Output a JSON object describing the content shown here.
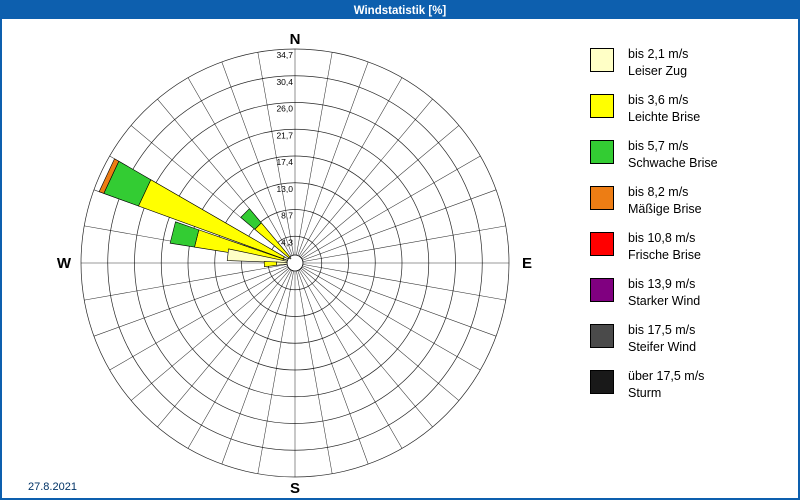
{
  "window": {
    "title": "Windstatistik [%]"
  },
  "footer": {
    "date": "27.8.2021"
  },
  "compass": {
    "n": "N",
    "e": "E",
    "s": "S",
    "w": "W"
  },
  "legend": {
    "items": [
      {
        "speed": "bis 2,1 m/s",
        "label": "Leiser Zug",
        "color": "#ffffc6"
      },
      {
        "speed": "bis 3,6 m/s",
        "label": "Leichte Brise",
        "color": "#ffff00"
      },
      {
        "speed": "bis 5,7 m/s",
        "label": "Schwache Brise",
        "color": "#33cc33"
      },
      {
        "speed": "bis 8,2 m/s",
        "label": "Mäßige Brise",
        "color": "#ed7d14"
      },
      {
        "speed": "bis 10,8 m/s",
        "label": "Frische Brise",
        "color": "#ff0000"
      },
      {
        "speed": "bis 13,9 m/s",
        "label": "Starker Wind",
        "color": "#800080"
      },
      {
        "speed": "bis 17,5 m/s",
        "label": "Steifer Wind",
        "color": "#4a4a4a"
      },
      {
        "speed": "über 17,5 m/s",
        "label": "Sturm",
        "color": "#191919"
      }
    ]
  },
  "chart_data": {
    "type": "wind_rose",
    "units": "%",
    "title": "Windstatistik [%]",
    "rings": 8,
    "r_max": 34.7,
    "radial_tick_labels": [
      "4,3",
      "8,7",
      "13,0",
      "17,4",
      "21,7",
      "26,0",
      "30,4",
      "34,7"
    ],
    "radial_tick_values": [
      4.3,
      8.7,
      13.0,
      17.4,
      21.7,
      26.0,
      30.4,
      34.7
    ],
    "sector_step_deg": 10,
    "speed_classes": [
      "bis 2,1 m/s",
      "bis 3,6 m/s",
      "bis 5,7 m/s",
      "bis 8,2 m/s",
      "bis 10,8 m/s",
      "bis 13,9 m/s",
      "bis 17,5 m/s",
      "über 17,5 m/s"
    ],
    "petals": [
      {
        "direction_deg": 295,
        "values": [
          2.0,
          25.0,
          6.0,
          0.8,
          0,
          0,
          0,
          0
        ]
      },
      {
        "direction_deg": 284,
        "values": [
          2.0,
          14.5,
          4.0,
          0,
          0,
          0,
          0,
          0
        ]
      },
      {
        "direction_deg": 315,
        "values": [
          1.0,
          7.5,
          3.0,
          0,
          0,
          0,
          0,
          0
        ]
      },
      {
        "direction_deg": 277,
        "values": [
          11.0,
          0,
          0,
          0,
          0,
          0,
          0,
          0
        ]
      },
      {
        "direction_deg": 268,
        "values": [
          3.0,
          2.0,
          0,
          0,
          0,
          0,
          0,
          0
        ]
      }
    ]
  }
}
